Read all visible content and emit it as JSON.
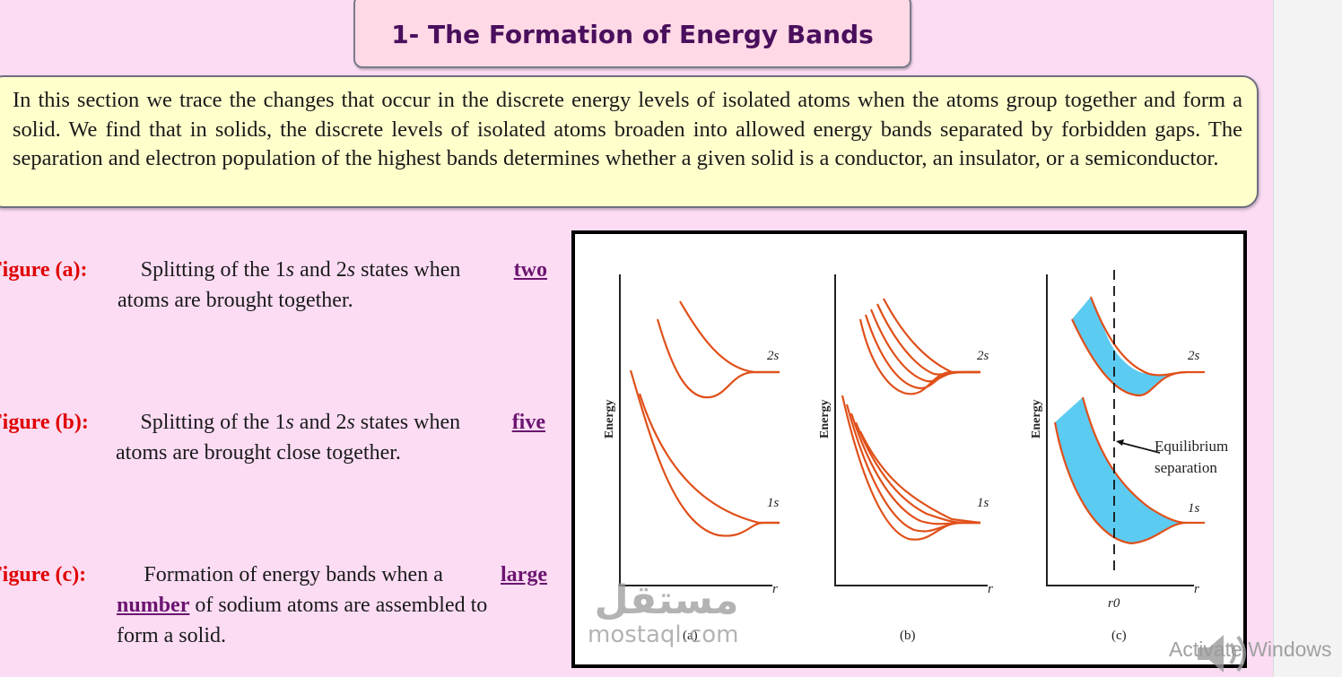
{
  "title": "1- The Formation of Energy Bands",
  "intro": "In this section we trace the changes that occur in the discrete energy levels of isolated atoms when the atoms group together and form a solid. We find that in solids, the discrete levels of isolated atoms broaden into allowed energy bands separated by forbidden gaps. The separation and electron population of the highest bands determines whether a given solid is a conductor, an insulator, or a semiconductor.",
  "figures": [
    {
      "label": "Figure (a):",
      "t1": "Splitting of the 1",
      "s1": "s",
      "t2": " and 2",
      "s2": "s",
      "t3": " states when ",
      "highlight": "two",
      "line2": "atoms are brought together."
    },
    {
      "label": "Figure (b):",
      "t1": "Splitting of the 1",
      "s1": "s",
      "t2": " and 2",
      "s2": "s",
      "t3": " states when ",
      "highlight": "five",
      "line2": "atoms are brought close together."
    },
    {
      "label": "Figure (c):",
      "t1": "Formation of energy bands when a",
      "highlight": "large",
      "highlight2": "number",
      "line2_rest": " of sodium atoms are assembled to",
      "line3": "form a solid."
    }
  ],
  "diagram": {
    "energy_axis_label": "Energy",
    "r_axis_label": "r",
    "level_2s": "2s",
    "level_1s": "1s",
    "equilibrium_label_1": "Equilibrium",
    "equilibrium_label_2": "separation",
    "r0_label": "r0",
    "panel_a": "(a)",
    "panel_b": "(b)",
    "panel_c": "(c)",
    "curve_color": "#e0501a",
    "band_fill_color": "#5ccbf2"
  },
  "watermark": {
    "arabic": "مستقل",
    "latin": "mostaql.com"
  },
  "os_notice": "Activate Windows",
  "colors": {
    "background": "#fbdcf3",
    "title_box": "#ffd9e6",
    "intro_box": "#ffffcc",
    "figure_label": "#e00000",
    "highlight": "#6b1470"
  }
}
